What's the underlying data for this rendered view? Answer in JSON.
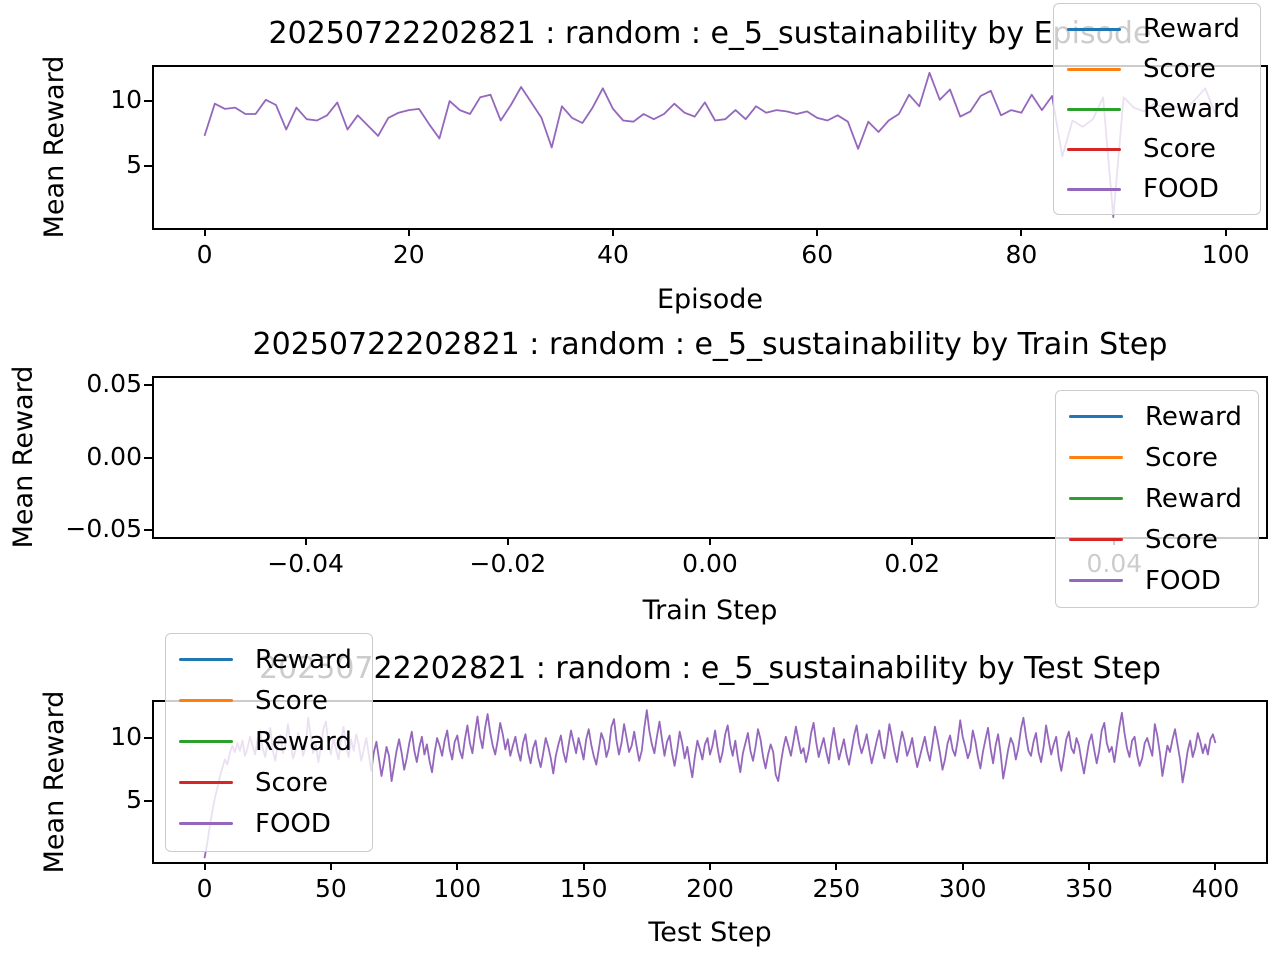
{
  "page": {
    "background": "#ffffff"
  },
  "legend": {
    "labels": [
      "Reward",
      "Score",
      "Reward",
      "Score",
      "FOOD"
    ],
    "colors": [
      "#1f77b4",
      "#ff7f0e",
      "#2ca02c",
      "#d62728",
      "#9467bd"
    ]
  },
  "chart_data": [
    {
      "type": "line",
      "title": "20250722202821 : random : e_5_sustainability by Episode",
      "xlabel": "Episode",
      "ylabel": "Mean Reward",
      "xlim": [
        -4.95,
        103.95
      ],
      "ylim": [
        0.15,
        12.65
      ],
      "xticks": [
        0,
        20,
        40,
        60,
        80,
        100
      ],
      "xtick_labels": [
        "0",
        "20",
        "40",
        "60",
        "80",
        "100"
      ],
      "yticks": [
        10,
        5
      ],
      "ytick_labels": [
        "10",
        "5"
      ],
      "grid": false,
      "legend_position": "upper-right",
      "legend_labels": [
        "Reward",
        "Score",
        "Reward",
        "Score",
        "FOOD"
      ],
      "legend_colors": [
        "#1f77b4",
        "#ff7f0e",
        "#2ca02c",
        "#d62728",
        "#9467bd"
      ],
      "series": [
        {
          "name": "FOOD",
          "color": "#9467bd",
          "x_start": 0,
          "x_step": 1,
          "values": [
            7.3,
            9.8,
            9.4,
            9.5,
            9.0,
            9.0,
            10.1,
            9.7,
            7.8,
            9.5,
            8.6,
            8.5,
            8.9,
            9.9,
            7.8,
            8.9,
            8.1,
            7.3,
            8.7,
            9.1,
            9.3,
            9.4,
            8.2,
            7.1,
            10.0,
            9.3,
            9.0,
            10.3,
            10.5,
            8.5,
            9.7,
            11.1,
            9.9,
            8.7,
            6.4,
            9.6,
            8.7,
            8.3,
            9.5,
            11.0,
            9.4,
            8.5,
            8.4,
            9.0,
            8.6,
            9.0,
            9.8,
            9.1,
            8.8,
            9.9,
            8.5,
            8.6,
            9.3,
            8.6,
            9.6,
            9.1,
            9.3,
            9.2,
            9.0,
            9.2,
            8.7,
            8.5,
            8.9,
            8.4,
            6.3,
            8.4,
            7.6,
            8.5,
            9.0,
            10.5,
            9.6,
            12.2,
            10.1,
            10.9,
            8.8,
            9.2,
            10.4,
            10.8,
            8.9,
            9.3,
            9.1,
            10.5,
            9.3,
            10.4,
            5.7,
            8.5,
            8.0,
            8.6,
            10.3,
            1.0,
            10.3,
            9.5,
            9.2,
            9.8,
            9.5,
            9.6,
            9.3,
            10.1,
            11.0,
            9.0
          ]
        }
      ]
    },
    {
      "type": "line",
      "title": "20250722202821 : random : e_5_sustainability by Train Step",
      "xlabel": "Train Step",
      "ylabel": "Mean Reward",
      "xlim": [
        -0.055,
        0.055
      ],
      "ylim": [
        -0.055,
        0.055
      ],
      "xticks": [
        -0.04,
        -0.02,
        0,
        0.02,
        0.04
      ],
      "xtick_labels": [
        "−0.04",
        "−0.02",
        "0.00",
        "0.02",
        "0.04"
      ],
      "yticks": [
        0.05,
        0,
        -0.05
      ],
      "ytick_labels": [
        "0.05",
        "0.00",
        "−0.05"
      ],
      "grid": false,
      "legend_position": "right",
      "legend_labels": [
        "Reward",
        "Score",
        "Reward",
        "Score",
        "FOOD"
      ],
      "legend_colors": [
        "#1f77b4",
        "#ff7f0e",
        "#2ca02c",
        "#d62728",
        "#9467bd"
      ],
      "series": []
    },
    {
      "type": "line",
      "title": "20250722202821 : random : e_5_sustainability by Test Step",
      "xlabel": "Test Step",
      "ylabel": "Mean Reward",
      "xlim": [
        -20,
        420
      ],
      "ylim": [
        0.2,
        12.85
      ],
      "xticks": [
        0,
        50,
        100,
        150,
        200,
        250,
        300,
        350,
        400
      ],
      "xtick_labels": [
        "0",
        "50",
        "100",
        "150",
        "200",
        "250",
        "300",
        "350",
        "400"
      ],
      "yticks": [
        10,
        5
      ],
      "ytick_labels": [
        "10",
        "5"
      ],
      "grid": false,
      "legend_position": "upper-left",
      "legend_labels": [
        "Reward",
        "Score",
        "Reward",
        "Score",
        "FOOD"
      ],
      "legend_colors": [
        "#1f77b4",
        "#ff7f0e",
        "#2ca02c",
        "#d62728",
        "#9467bd"
      ],
      "series": [
        {
          "name": "FOOD",
          "color": "#9467bd",
          "x_start": 0,
          "x_step": 1,
          "values": [
            0.5,
            1.6,
            2.9,
            4.1,
            5.2,
            6.0,
            6.9,
            7.6,
            8.3,
            7.9,
            8.8,
            9.4,
            8.9,
            9.6,
            9.0,
            9.8,
            8.6,
            9.2,
            10.1,
            9.4,
            8.7,
            9.9,
            10.6,
            9.2,
            8.5,
            9.7,
            10.8,
            9.0,
            8.2,
            9.5,
            10.2,
            8.8,
            9.4,
            11.1,
            9.6,
            8.4,
            9.0,
            10.4,
            9.8,
            8.6,
            9.3,
            11.6,
            10.2,
            8.8,
            9.6,
            8.1,
            9.2,
            10.7,
            11.3,
            9.5,
            8.7,
            10.0,
            9.1,
            8.3,
            9.8,
            10.9,
            9.3,
            8.5,
            9.9,
            9.0,
            10.3,
            9.5,
            8.2,
            9.1,
            10.0,
            8.7,
            7.4,
            8.9,
            9.7,
            8.4,
            7.0,
            8.1,
            9.3,
            8.6,
            6.6,
            7.8,
            9.0,
            9.9,
            8.8,
            7.5,
            8.4,
            9.6,
            10.5,
            9.0,
            8.1,
            9.3,
            10.1,
            8.7,
            9.5,
            8.2,
            7.3,
            8.8,
            10.0,
            9.4,
            8.6,
            9.8,
            10.6,
            9.1,
            8.3,
            9.7,
            10.2,
            9.0,
            8.4,
            9.9,
            11.0,
            9.6,
            8.8,
            10.4,
            11.7,
            10.1,
            9.2,
            10.8,
            11.9,
            10.5,
            9.4,
            8.7,
            9.8,
            11.2,
            10.3,
            9.1,
            9.9,
            8.6,
            9.4,
            10.1,
            9.0,
            8.2,
            9.6,
            10.3,
            8.9,
            8.0,
            9.2,
            9.8,
            8.5,
            7.7,
            8.8,
            10.0,
            9.3,
            8.4,
            7.2,
            8.6,
            9.5,
            10.2,
            8.9,
            8.1,
            9.4,
            10.6,
            9.7,
            8.8,
            10.0,
            9.2,
            8.3,
            9.9,
            10.7,
            9.5,
            8.6,
            7.9,
            9.1,
            10.4,
            9.8,
            8.5,
            9.2,
            10.9,
            11.5,
            9.8,
            8.7,
            9.6,
            11.1,
            10.0,
            8.9,
            9.4,
            10.5,
            9.3,
            8.2,
            9.0,
            10.8,
            12.2,
            10.6,
            9.5,
            8.8,
            10.1,
            11.3,
            9.9,
            8.6,
            9.7,
            10.2,
            8.8,
            7.8,
            9.0,
            10.5,
            9.6,
            8.4,
            9.3,
            8.0,
            6.9,
            8.5,
            9.8,
            9.1,
            8.3,
            9.5,
            10.0,
            8.7,
            9.4,
            10.6,
            9.2,
            8.1,
            8.9,
            10.3,
            11.0,
            9.5,
            8.6,
            9.8,
            8.4,
            7.3,
            8.8,
            9.6,
            10.4,
            9.0,
            8.2,
            9.3,
            10.7,
            9.9,
            8.5,
            7.6,
            8.7,
            9.5,
            8.9,
            7.1,
            6.6,
            8.0,
            9.2,
            10.1,
            9.4,
            8.6,
            9.7,
            10.9,
            9.8,
            8.8,
            9.2,
            8.1,
            9.0,
            10.4,
            11.2,
            9.7,
            8.5,
            9.3,
            10.0,
            8.9,
            8.0,
            9.6,
            10.8,
            9.4,
            8.3,
            9.1,
            9.9,
            8.7,
            7.9,
            9.0,
            10.2,
            11.0,
            9.6,
            8.8,
            9.5,
            10.3,
            9.1,
            8.0,
            8.9,
            9.8,
            10.6,
            9.2,
            8.4,
            9.6,
            11.1,
            10.0,
            8.9,
            8.1,
            9.4,
            10.5,
            9.7,
            8.6,
            9.2,
            10.0,
            8.7,
            7.7,
            8.5,
            9.3,
            10.1,
            9.0,
            8.2,
            9.5,
            10.9,
            9.9,
            8.8,
            7.5,
            8.3,
            9.6,
            10.2,
            9.1,
            8.6,
            9.8,
            11.4,
            10.1,
            9.3,
            8.4,
            9.0,
            10.6,
            9.7,
            8.5,
            7.6,
            8.9,
            9.9,
            10.8,
            9.2,
            8.0,
            9.4,
            10.3,
            8.8,
            6.8,
            7.9,
            9.1,
            10.0,
            9.5,
            8.3,
            9.2,
            10.7,
            11.6,
            10.2,
            9.0,
            8.6,
            9.7,
            10.4,
            8.9,
            8.1,
            9.3,
            11.0,
            9.8,
            8.7,
            9.5,
            10.1,
            8.4,
            7.4,
            8.6,
            9.9,
            10.5,
            9.2,
            8.8,
            10.0,
            9.4,
            8.2,
            7.2,
            8.5,
            9.7,
            10.3,
            9.1,
            8.0,
            9.0,
            10.6,
            11.2,
            9.6,
            8.9,
            9.3,
            8.1,
            9.5,
            10.9,
            12.0,
            10.4,
            9.2,
            8.5,
            9.8,
            10.1,
            8.7,
            7.8,
            8.4,
            9.6,
            10.0,
            9.3,
            8.6,
            11.1,
            10.2,
            8.8,
            7.0,
            8.2,
            9.4,
            8.9,
            9.9,
            10.7,
            9.5,
            8.3,
            6.5,
            7.6,
            9.0,
            9.8,
            8.5,
            9.2,
            10.4,
            9.7,
            8.8,
            9.5,
            8.7,
            9.9,
            10.3,
            9.6
          ]
        }
      ]
    }
  ]
}
